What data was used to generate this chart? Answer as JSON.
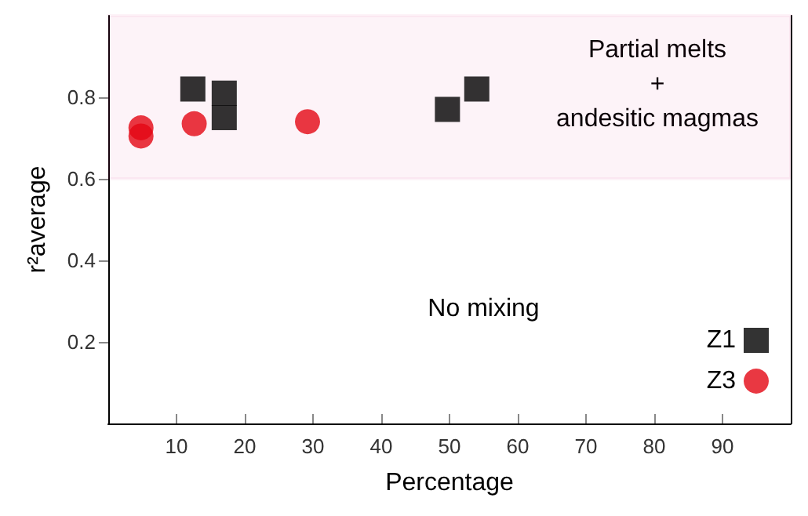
{
  "chart_data": {
    "type": "scatter",
    "xlabel": "Percentage",
    "ylabel": "r²average",
    "xlim": [
      0,
      100
    ],
    "xticks": [
      10,
      20,
      30,
      40,
      50,
      60,
      70,
      80,
      90
    ],
    "ylim": [
      0,
      1
    ],
    "yticks": [
      0.2,
      0.4,
      0.6,
      0.8
    ],
    "grid": false,
    "legend": "bottom right",
    "series": [
      {
        "name": "Z1",
        "color": "#000000",
        "marker": "square",
        "x": [
          12.4,
          17,
          17,
          49.7,
          54
        ],
        "values": [
          0.82,
          0.81,
          0.75,
          0.77,
          0.82
        ]
      },
      {
        "name": "Z3",
        "color": "#e30613",
        "marker": "circle",
        "x": [
          4.8,
          4.8,
          12.6,
          29.2
        ],
        "values": [
          0.725,
          0.705,
          0.735,
          0.74
        ]
      }
    ],
    "bands": [
      {
        "axis": "y",
        "from": 0.6,
        "to": 1,
        "label": "Partial melts\n+\nandesitic magmas",
        "color": "#e0107a"
      }
    ],
    "annotations": [
      "No mixing"
    ]
  }
}
